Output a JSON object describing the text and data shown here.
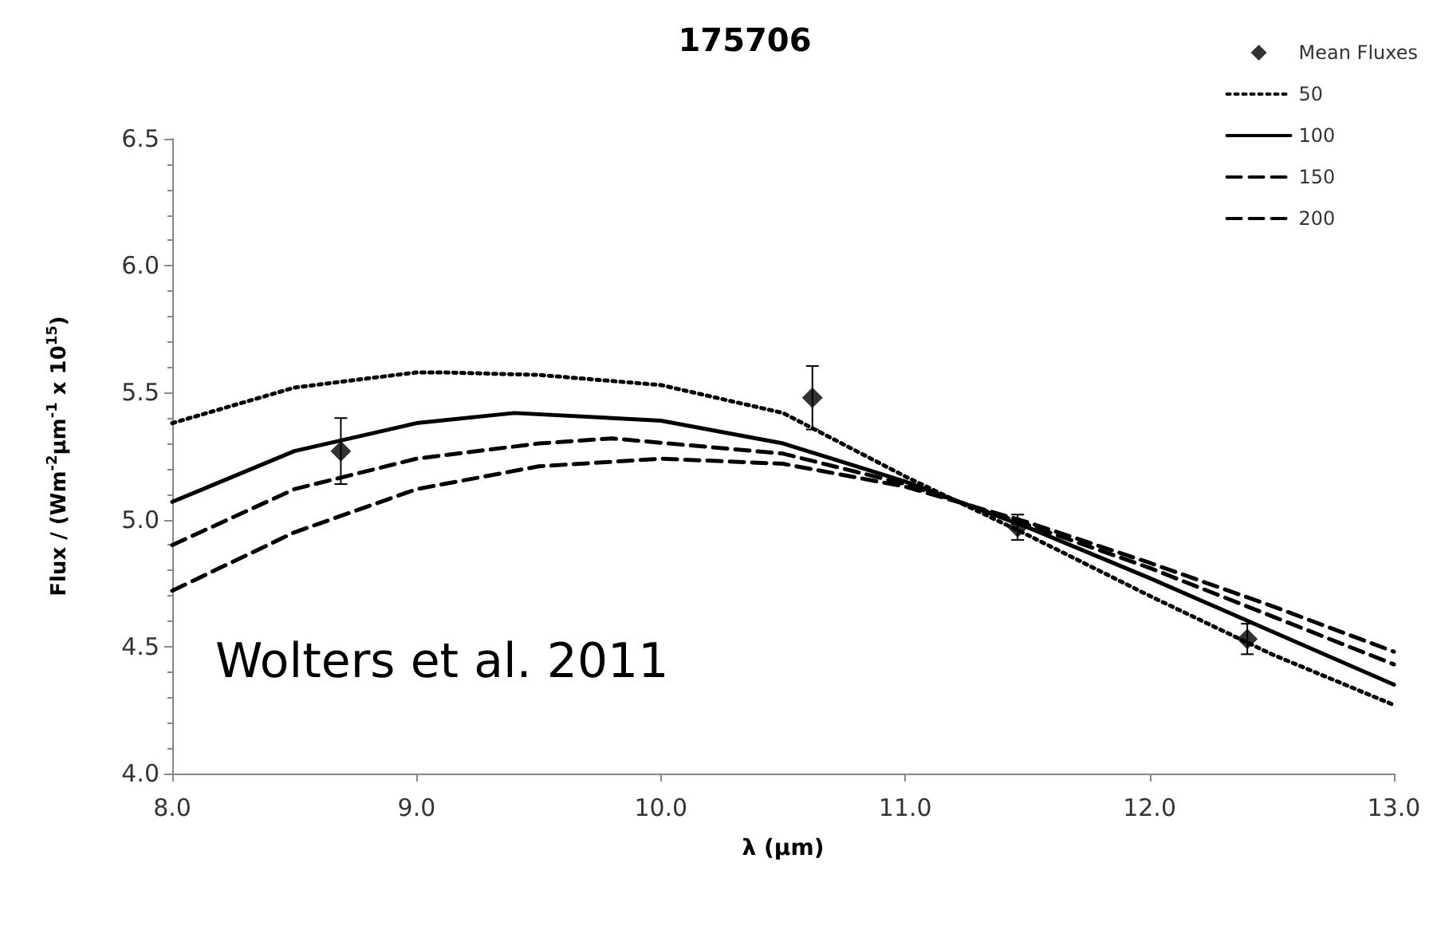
{
  "chart_data": {
    "type": "line",
    "title": "175706",
    "xlabel": "λ (μm)",
    "ylabel": "Flux / (Wm$^{-2}$μm$^{-1}$ x 10$^{15}$)",
    "annotations": [
      "Wolters et al. 2011"
    ],
    "xlim": [
      8,
      13
    ],
    "xticks": [
      {
        "value": 8,
        "label": "8.0"
      },
      {
        "value": 9,
        "label": "9.0"
      },
      {
        "value": 10,
        "label": "10.0"
      },
      {
        "value": 11,
        "label": "11.0"
      },
      {
        "value": 12,
        "label": "12.0"
      },
      {
        "value": 13,
        "label": "13.0"
      }
    ],
    "ylim": [
      4,
      6.5
    ],
    "yticks": [
      {
        "value": 4,
        "label": "4.0"
      },
      {
        "value": 4.5,
        "label": "4.5"
      },
      {
        "value": 5,
        "label": "5.0"
      },
      {
        "value": 5.5,
        "label": "5.5"
      },
      {
        "value": 6,
        "label": "6.0"
      },
      {
        "value": 6.5,
        "label": "6.5"
      }
    ],
    "grid": false,
    "legend": "top right",
    "series": [
      {
        "name": "Mean Fluxes",
        "type": "scatter",
        "marker": "diamond",
        "color": "#000000",
        "x": [
          8.69,
          10.62,
          11.46,
          12.4
        ],
        "values": [
          5.27,
          5.48,
          4.97,
          4.53
        ],
        "errors": [
          0.13,
          0.125,
          0.05,
          0.06
        ]
      },
      {
        "name": "50",
        "marker": "none",
        "line_style": "dotted",
        "color": "#000000",
        "x": [
          8,
          8.5,
          9,
          9.1,
          9.5,
          10,
          10.5,
          11,
          11.5,
          12,
          12.5,
          13
        ],
        "values": [
          5.38,
          5.52,
          5.58,
          5.58,
          5.57,
          5.53,
          5.42,
          5.17,
          4.94,
          4.7,
          4.47,
          4.27
        ]
      },
      {
        "name": "100",
        "marker": "none",
        "line_style": "solid",
        "color": "#000000",
        "x": [
          8,
          8.5,
          9,
          9.4,
          10,
          10.5,
          11,
          11.5,
          12,
          12.5,
          13
        ],
        "values": [
          5.07,
          5.27,
          5.38,
          5.42,
          5.39,
          5.3,
          5.15,
          4.97,
          4.77,
          4.56,
          4.35
        ]
      },
      {
        "name": "150",
        "marker": "none",
        "line_style": "dashed",
        "color": "#000000",
        "x": [
          8,
          8.5,
          9,
          9.5,
          9.8,
          10.5,
          11,
          11.5,
          12,
          12.5,
          13
        ],
        "values": [
          4.9,
          5.12,
          5.24,
          5.3,
          5.32,
          5.26,
          5.14,
          4.98,
          4.81,
          4.62,
          4.43
        ]
      },
      {
        "name": "200",
        "marker": "none",
        "line_style": "dashed",
        "color": "#000000",
        "x": [
          8,
          8.5,
          9,
          9.5,
          10,
          10.5,
          11,
          11.5,
          12,
          12.5,
          13
        ],
        "values": [
          4.72,
          4.95,
          5.12,
          5.21,
          5.24,
          5.22,
          5.13,
          4.99,
          4.83,
          4.66,
          4.48
        ]
      }
    ]
  }
}
